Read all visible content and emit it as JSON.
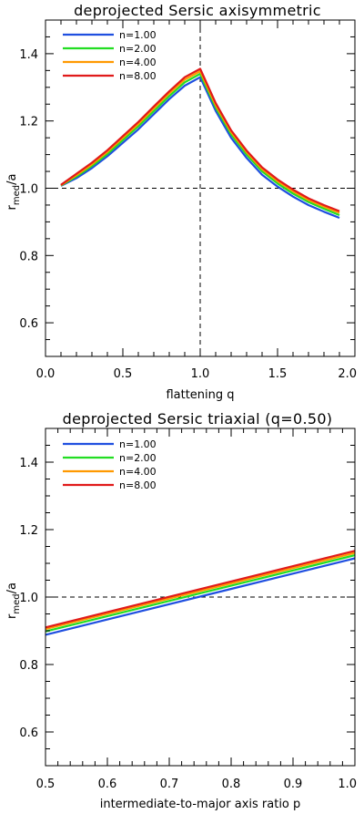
{
  "chart_data": [
    {
      "type": "line",
      "title": "deprojected Sersic axisymmetric",
      "xlabel": "flattening q",
      "ylabel_main": "r",
      "ylabel_sub": "med",
      "ylabel_rest": "/a",
      "xlim": [
        0.0,
        2.0
      ],
      "ylim": [
        0.5,
        1.5
      ],
      "xticks": [
        0.0,
        0.5,
        1.0,
        1.5,
        2.0
      ],
      "xtick_labels": [
        "0.0",
        "0.5",
        "1.0",
        "1.5",
        "2.0"
      ],
      "yticks": [
        0.6,
        0.8,
        1.0,
        1.2,
        1.4
      ],
      "ytick_labels": [
        "0.6",
        "0.8",
        "1.0",
        "1.2",
        "1.4"
      ],
      "reference_lines": {
        "hline": 1.0,
        "vline": 1.0
      },
      "legend_position": "top-left",
      "x": [
        0.1,
        0.2,
        0.3,
        0.4,
        0.5,
        0.6,
        0.7,
        0.8,
        0.9,
        1.0,
        1.1,
        1.2,
        1.3,
        1.4,
        1.5,
        1.6,
        1.7,
        1.8,
        1.9
      ],
      "series": [
        {
          "name": "n=1.00",
          "color": "#1f4fe0",
          "values": [
            1.007,
            1.03,
            1.06,
            1.095,
            1.135,
            1.175,
            1.22,
            1.265,
            1.305,
            1.33,
            1.23,
            1.15,
            1.09,
            1.04,
            1.005,
            0.975,
            0.95,
            0.93,
            0.912
          ]
        },
        {
          "name": "n=2.00",
          "color": "#22dd22",
          "values": [
            1.008,
            1.035,
            1.066,
            1.102,
            1.143,
            1.184,
            1.229,
            1.274,
            1.315,
            1.34,
            1.24,
            1.16,
            1.1,
            1.05,
            1.014,
            0.984,
            0.959,
            0.939,
            0.92
          ]
        },
        {
          "name": "n=4.00",
          "color": "#ff9900",
          "values": [
            1.009,
            1.039,
            1.071,
            1.108,
            1.15,
            1.191,
            1.237,
            1.282,
            1.323,
            1.348,
            1.247,
            1.167,
            1.107,
            1.057,
            1.021,
            0.991,
            0.965,
            0.945,
            0.927
          ]
        },
        {
          "name": "n=8.00",
          "color": "#e01a1a",
          "values": [
            1.01,
            1.043,
            1.076,
            1.113,
            1.155,
            1.197,
            1.243,
            1.288,
            1.33,
            1.355,
            1.253,
            1.172,
            1.112,
            1.062,
            1.026,
            0.996,
            0.97,
            0.95,
            0.932
          ]
        }
      ]
    },
    {
      "type": "line",
      "title": "deprojected Sersic triaxial (q=0.50)",
      "xlabel": "intermediate-to-major axis ratio p",
      "ylabel_main": "r",
      "ylabel_sub": "med",
      "ylabel_rest": "/a",
      "xlim": [
        0.5,
        1.0
      ],
      "ylim": [
        0.5,
        1.5
      ],
      "xticks": [
        0.5,
        0.6,
        0.7,
        0.8,
        0.9,
        1.0
      ],
      "xtick_labels": [
        "0.5",
        "0.6",
        "0.7",
        "0.8",
        "0.9",
        "1.0"
      ],
      "yticks": [
        0.6,
        0.8,
        1.0,
        1.2,
        1.4
      ],
      "ytick_labels": [
        "0.6",
        "0.8",
        "1.0",
        "1.2",
        "1.4"
      ],
      "reference_lines": {
        "hline": 1.0
      },
      "legend_position": "top-left",
      "x": [
        0.5,
        1.0
      ],
      "series": [
        {
          "name": "n=1.00",
          "color": "#1f4fe0",
          "values": [
            0.888,
            1.115
          ]
        },
        {
          "name": "n=2.00",
          "color": "#22dd22",
          "values": [
            0.898,
            1.124
          ]
        },
        {
          "name": "n=4.00",
          "color": "#ff9900",
          "values": [
            0.905,
            1.131
          ]
        },
        {
          "name": "n=8.00",
          "color": "#e01a1a",
          "values": [
            0.91,
            1.137
          ]
        }
      ]
    }
  ]
}
